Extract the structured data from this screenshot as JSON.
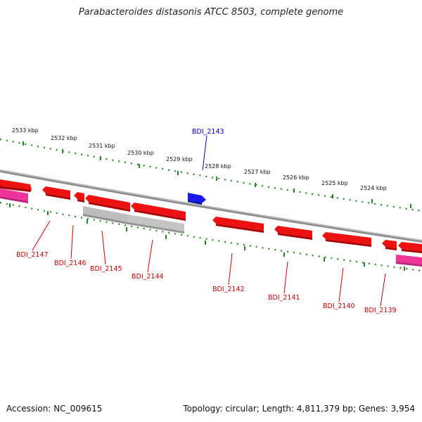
{
  "title": "Parabacteroides distasonis ATCC 8503, complete genome",
  "footer": {
    "accession": "Accession: NC_009615",
    "summary": "Topology: circular; Length: 4,811,379 bp; Genes: 3,954"
  },
  "colors": {
    "gene_red": "#ee1111",
    "gene_blue": "#1a1aee",
    "gene_gray": "#b8b8b8",
    "gene_pink": "#ee3399",
    "tick_green": "#228822",
    "backbone": "#888888"
  },
  "ticks": {
    "labels": [
      "2533 kbp",
      "2532 kbp",
      "2531 kbp",
      "2530 kbp",
      "2529 kbp",
      "2528 kbp",
      "2527 kbp",
      "2526 kbp",
      "2525 kbp",
      "2524 kbp"
    ]
  },
  "genes": {
    "BDI_2143": "BDI_2143",
    "BDI_2147": "BDI_2147",
    "BDI_2146": "BDI_2146",
    "BDI_2145": "BDI_2145",
    "BDI_2144": "BDI_2144",
    "BDI_2142": "BDI_2142",
    "BDI_2141": "BDI_2141",
    "BDI_2140": "BDI_2140",
    "BDI_2139": "BDI_2139"
  }
}
